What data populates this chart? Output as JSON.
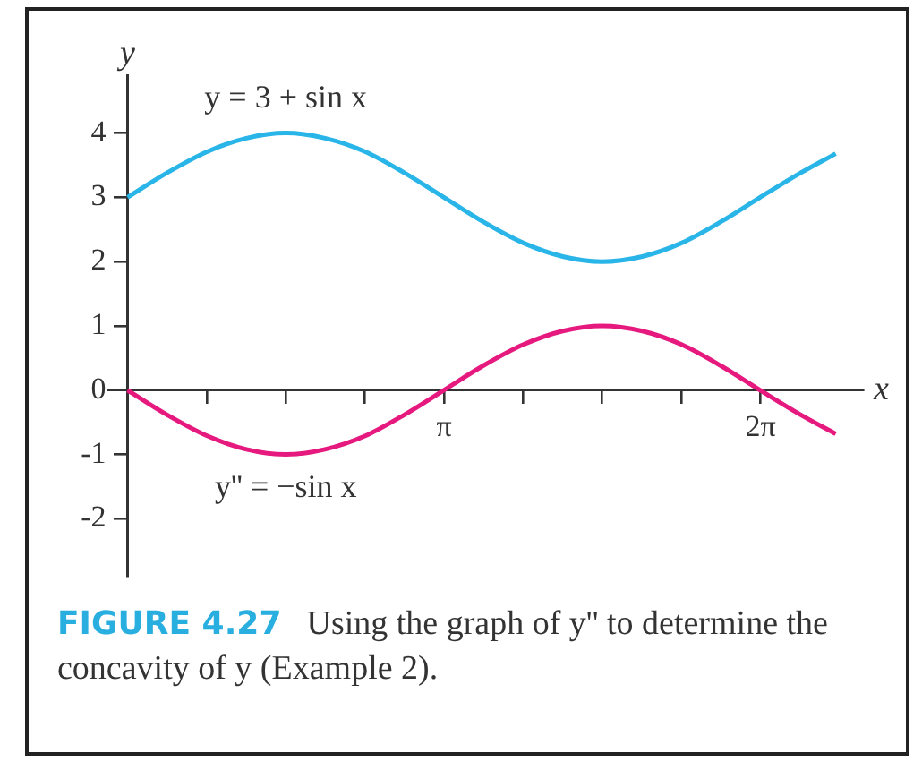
{
  "chart_data": {
    "type": "line",
    "xlabel": "x",
    "ylabel": "y",
    "x": [
      0,
      0.39,
      0.79,
      1.18,
      1.57,
      1.96,
      2.36,
      2.75,
      3.14,
      3.53,
      3.93,
      4.32,
      4.71,
      5.11,
      5.5,
      5.89,
      6.28,
      6.68,
      7.03
    ],
    "series": [
      {
        "name": "y = 3 + sin x",
        "color": "#29b5e8",
        "values": [
          3,
          3.38,
          3.71,
          3.92,
          4,
          3.92,
          3.71,
          3.38,
          3,
          2.62,
          2.29,
          2.08,
          2,
          2.08,
          2.29,
          2.62,
          3,
          3.38,
          3.68
        ]
      },
      {
        "name": "y'' = −sin x",
        "color": "#e6197f",
        "values": [
          0,
          -0.38,
          -0.71,
          -0.92,
          -1,
          -0.92,
          -0.71,
          -0.38,
          0,
          0.38,
          0.71,
          0.92,
          1,
          0.92,
          0.71,
          0.38,
          0,
          -0.38,
          -0.68
        ]
      }
    ],
    "xlim": [
      -0.2,
      7.3
    ],
    "ylim": [
      -2.9,
      4.9
    ],
    "xticks": [
      {
        "value": 0.785,
        "label": null
      },
      {
        "value": 1.571,
        "label": null
      },
      {
        "value": 2.356,
        "label": null
      },
      {
        "value": 3.1416,
        "label": "π"
      },
      {
        "value": 3.927,
        "label": null
      },
      {
        "value": 4.712,
        "label": null
      },
      {
        "value": 5.498,
        "label": null
      },
      {
        "value": 6.2832,
        "label": "2π"
      }
    ],
    "yticks": [
      -2,
      -1,
      0,
      1,
      2,
      3,
      4
    ],
    "legend": false,
    "marker": "none",
    "line_style": "solid",
    "annotations": [
      "FIGURE 4.27",
      "Using the graph of y'' to determine the concavity of y (Example 2)."
    ]
  }
}
